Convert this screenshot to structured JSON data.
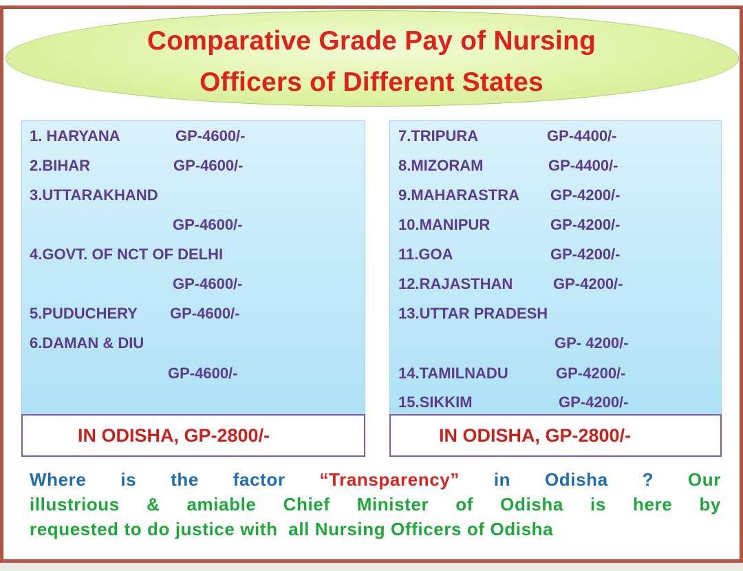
{
  "title_line1": "Comparative Grade Pay of Nursing",
  "title_line2": "Officers of Different States",
  "left": [
    {
      "state": "1. HARYANA",
      "gp": "GP-4600/-"
    },
    {
      "state": "2.BIHAR",
      "gp": "GP-4600/-"
    },
    {
      "state": "3.UTTARAKHAND",
      "gp": "GP-4600/-"
    },
    {
      "state": "4.GOVT. OF NCT OF DELHI",
      "gp": "GP-4600/-"
    },
    {
      "state": "5.PUDUCHERY",
      "gp": "GP-4600/-"
    },
    {
      "state": "6.DAMAN & DIU",
      "gp": "GP-4600/-"
    }
  ],
  "right": [
    {
      "state": "7.TRIPURA",
      "gp": "GP-4400/-"
    },
    {
      "state": "8.MIZORAM",
      "gp": "GP-4400/-"
    },
    {
      "state": "9.MAHARASTRA",
      "gp": "GP-4200/-"
    },
    {
      "state": "10.MANIPUR",
      "gp": "GP-4200/-"
    },
    {
      "state": "11.GOA",
      "gp": "GP-4200/-"
    },
    {
      "state": "12.RAJASTHAN",
      "gp": "GP-4200/-"
    },
    {
      "state": "13.UTTAR PRADESH",
      "gp": "GP- 4200/-"
    },
    {
      "state": "14.TAMILNADU",
      "gp": "GP-4200/-"
    },
    {
      "state": "15.SIKKIM",
      "gp": "GP-4200/-"
    }
  ],
  "odisha_left": "IN ODISHA, GP-2800/-",
  "odisha_right": "IN ODISHA, GP-2800/-",
  "para": {
    "w1": "Where",
    "w2": "is",
    "w3": "the",
    "w4": "factor",
    "w5": "“Transparency”",
    "w6": "in",
    "w7": "Odisha",
    "w8": "?",
    "w9": "Our",
    "l2_a": "illustrious",
    "l2_b": "&",
    "l2_c": "amiable",
    "l2_d": "Chief",
    "l2_e": "Minister",
    "l2_f": "of",
    "l2_g": "Odisha",
    "l2_h": "is",
    "l2_i": "here",
    "l2_j": "by",
    "line3": "requested to do justice with  all Nursing Officers of Odisha"
  },
  "colors": {
    "title": "#e0201b",
    "state_text": "#5a3b8f",
    "odisha_text": "#c8221a",
    "para_blue": "#1f6bb6",
    "para_red": "#d9231d",
    "para_green": "#1fa83a",
    "border": "#b4533f"
  }
}
